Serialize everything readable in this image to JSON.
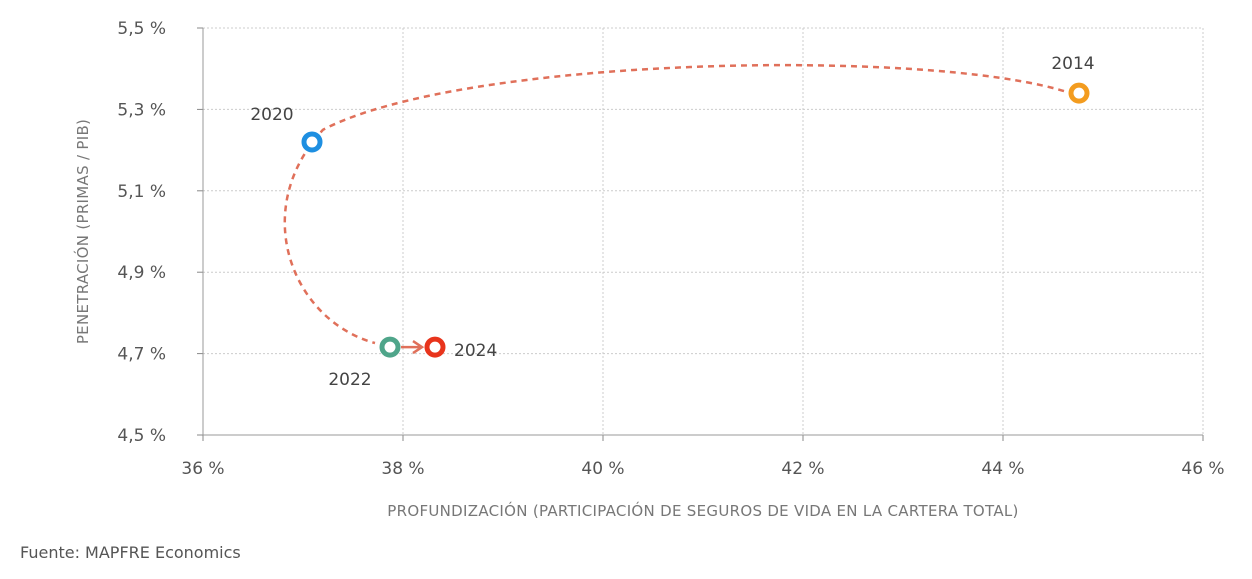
{
  "chart_data": {
    "type": "scatter",
    "xlabel": "PROFUNDIZACIÓN (PARTICIPACIÓN DE SEGUROS DE VIDA EN LA CARTERA TOTAL)",
    "ylabel": "PENETRACIÓN (PRIMAS / PIB)",
    "xlim": [
      36,
      46
    ],
    "ylim": [
      4.5,
      5.5
    ],
    "x_ticks": [
      "36 %",
      "38 %",
      "40 %",
      "42 %",
      "44 %",
      "46 %"
    ],
    "y_ticks": [
      "4,5 %",
      "4,7 %",
      "4,9 %",
      "5,1 %",
      "5,3 %",
      "5,5 %"
    ],
    "grid": true,
    "points": [
      {
        "label": "2014",
        "x": 44.76,
        "y": 5.34,
        "color": "#F39C1F"
      },
      {
        "label": "2020",
        "x": 37.09,
        "y": 5.22,
        "color": "#1E8FE1"
      },
      {
        "label": "2022",
        "x": 37.87,
        "y": 4.716,
        "color": "#4FA58A"
      },
      {
        "label": "2024",
        "x": 38.32,
        "y": 4.716,
        "color": "#E8341C"
      }
    ],
    "path_color": "#E0705A"
  },
  "source": "Fuente: MAPFRE Economics"
}
